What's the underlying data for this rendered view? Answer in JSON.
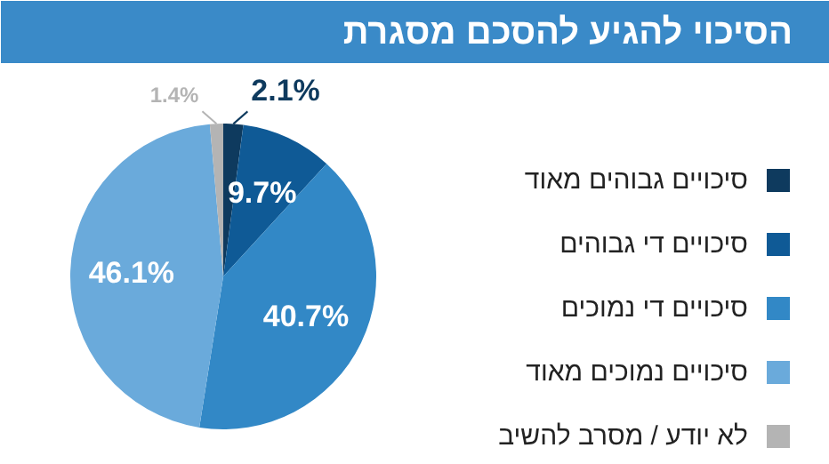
{
  "chart_data": {
    "type": "pie",
    "title": "הסיכוי להגיע להסכם מסגרת",
    "categories": [
      "סיכויים גבוהים מאוד",
      "סיכויים די גבוהים",
      "סיכויים די נמוכים",
      "סיכויים נמוכים מאוד",
      "לא יודע / מסרב להשיב"
    ],
    "values": [
      2.1,
      9.7,
      40.7,
      46.1,
      1.4
    ],
    "colors": [
      "#0e3a5e",
      "#0f5a96",
      "#3288c6",
      "#6aaadb",
      "#b4b4b4"
    ],
    "value_labels": [
      "2.1%",
      "9.7%",
      "40.7%",
      "46.1%",
      "1.4%"
    ],
    "legend": "right"
  }
}
